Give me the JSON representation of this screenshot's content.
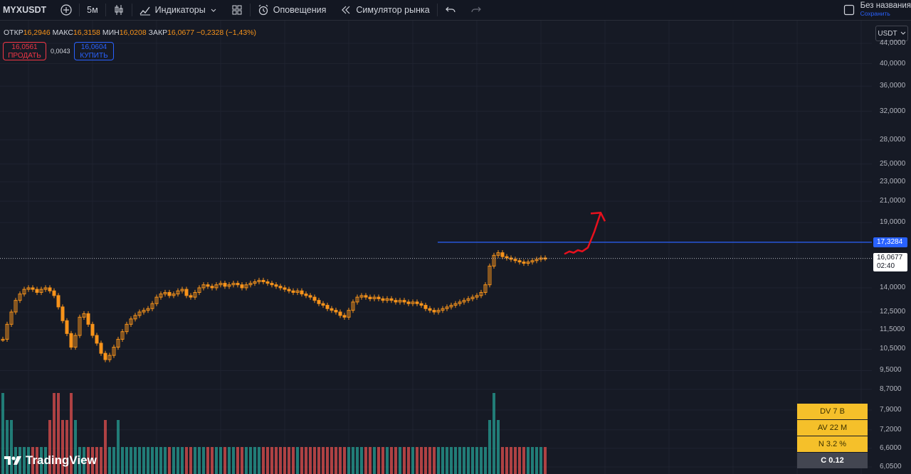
{
  "toolbar": {
    "symbol": "MYXUSDT",
    "interval": "5м",
    "indicators_label": "Индикаторы",
    "alerts_label": "Оповещения",
    "simulator_label": "Симулятор рынка",
    "save_title": "Без названия",
    "save_status": "Сохранить"
  },
  "legend": {
    "open_label": "ОТКР",
    "open": "16,2946",
    "high_label": "МАКС",
    "high": "16,3158",
    "low_label": "МИН",
    "low": "16,0208",
    "close_label": "ЗАКР",
    "close": "16,0677",
    "change": "−0,2328 (−1,43%)"
  },
  "trade": {
    "sell_price": "16,0561",
    "sell_label": "ПРОДАТЬ",
    "spread": "0,0043",
    "buy_price": "16,0604",
    "buy_label": "КУПИТЬ"
  },
  "currency": "USDT",
  "price_flags": {
    "level": "17,3284",
    "last": "16,0677",
    "countdown": "02:40"
  },
  "stats_box": [
    {
      "label": "DV 7 B"
    },
    {
      "label": "AV 22 M"
    },
    {
      "label": "N 3.2 %"
    },
    {
      "label": "C  0.12"
    }
  ],
  "logo": "TradingView",
  "colors": {
    "background": "#161a25",
    "up": "#f7931a",
    "level_line": "#2962ff",
    "arrow": "#e8101d",
    "volume_up": "#26a69a",
    "volume_down": "#ef5350"
  },
  "chart_data": {
    "type": "candlestick",
    "y_scale": "log",
    "ylim": [
      6.05,
      44.0
    ],
    "y_ticks": [
      "44,0000",
      "40,0000",
      "36,0000",
      "32,0000",
      "28,0000",
      "25,0000",
      "23,0000",
      "21,0000",
      "19,0000",
      "14,0000",
      "12,5000",
      "11,5000",
      "10,5000",
      "9,5000",
      "8,7000",
      "7,9000",
      "7,2000",
      "6,6000",
      "6,0500"
    ],
    "y_tick_values": [
      44,
      40,
      36,
      32,
      28,
      25,
      23,
      21,
      19,
      14,
      12.5,
      11.5,
      10.5,
      9.5,
      8.7,
      7.9,
      7.2,
      6.6,
      6.05
    ],
    "horizontal_level": 17.3284,
    "last_price": 16.0677,
    "close_path": [
      11.0,
      11.8,
      12.5,
      13.2,
      13.6,
      13.9,
      14.0,
      13.9,
      13.7,
      13.9,
      14.0,
      13.8,
      13.5,
      12.8,
      12.0,
      11.3,
      10.6,
      11.2,
      12.2,
      12.4,
      11.8,
      11.2,
      10.8,
      10.3,
      10.0,
      10.2,
      10.6,
      11.0,
      11.4,
      11.8,
      12.1,
      12.3,
      12.5,
      12.6,
      12.7,
      13.0,
      13.4,
      13.6,
      13.7,
      13.5,
      13.6,
      13.8,
      13.9,
      13.5,
      13.4,
      13.7,
      14.0,
      14.2,
      14.1,
      14.0,
      14.2,
      14.3,
      14.1,
      14.2,
      14.3,
      14.2,
      14.0,
      14.2,
      14.3,
      14.4,
      14.5,
      14.4,
      14.3,
      14.2,
      14.1,
      14.0,
      13.9,
      13.8,
      13.7,
      13.8,
      13.6,
      13.5,
      13.4,
      13.2,
      13.0,
      12.9,
      12.7,
      12.6,
      12.5,
      12.3,
      12.2,
      12.6,
      13.1,
      13.4,
      13.5,
      13.4,
      13.3,
      13.4,
      13.3,
      13.2,
      13.3,
      13.2,
      13.1,
      13.2,
      13.1,
      13.0,
      13.1,
      13.0,
      12.9,
      12.7,
      12.6,
      12.5,
      12.6,
      12.7,
      12.8,
      12.9,
      13.0,
      13.1,
      13.2,
      13.3,
      13.4,
      13.5,
      13.7,
      14.2,
      15.5,
      16.3,
      16.5,
      16.2,
      16.1,
      16.0,
      15.9,
      15.8,
      15.7,
      15.8,
      15.9,
      16.0,
      16.1,
      16.0677
    ],
    "volume_path": [
      3,
      2,
      2,
      1,
      1,
      1,
      1,
      1,
      1,
      1,
      1,
      2,
      3,
      3,
      2,
      2,
      3,
      2,
      1,
      1,
      1,
      1,
      1,
      1,
      2,
      1,
      1,
      2,
      1,
      1,
      1,
      1,
      1,
      1,
      1,
      1,
      1,
      1,
      1,
      1,
      1,
      1,
      1,
      1,
      1,
      1,
      1,
      1,
      1,
      1,
      1,
      1,
      1,
      1,
      1,
      1,
      1,
      1,
      1,
      1,
      1,
      1,
      1,
      1,
      1,
      1,
      1,
      1,
      1,
      1,
      1,
      1,
      1,
      1,
      1,
      1,
      1,
      1,
      1,
      1,
      1,
      1,
      1,
      1,
      1,
      1,
      1,
      1,
      1,
      1,
      1,
      1,
      1,
      1,
      1,
      1,
      1,
      1,
      1,
      1,
      1,
      1,
      1,
      1,
      1,
      1,
      1,
      1,
      1,
      1,
      1,
      1,
      1,
      1,
      2,
      3,
      2,
      1,
      1,
      1,
      1,
      1,
      1,
      1,
      1,
      1,
      1,
      1,
      1,
      1
    ],
    "projection_arrow": [
      16.4,
      16.6,
      16.5,
      16.7,
      16.6,
      16.9,
      18.2,
      19.9
    ]
  }
}
